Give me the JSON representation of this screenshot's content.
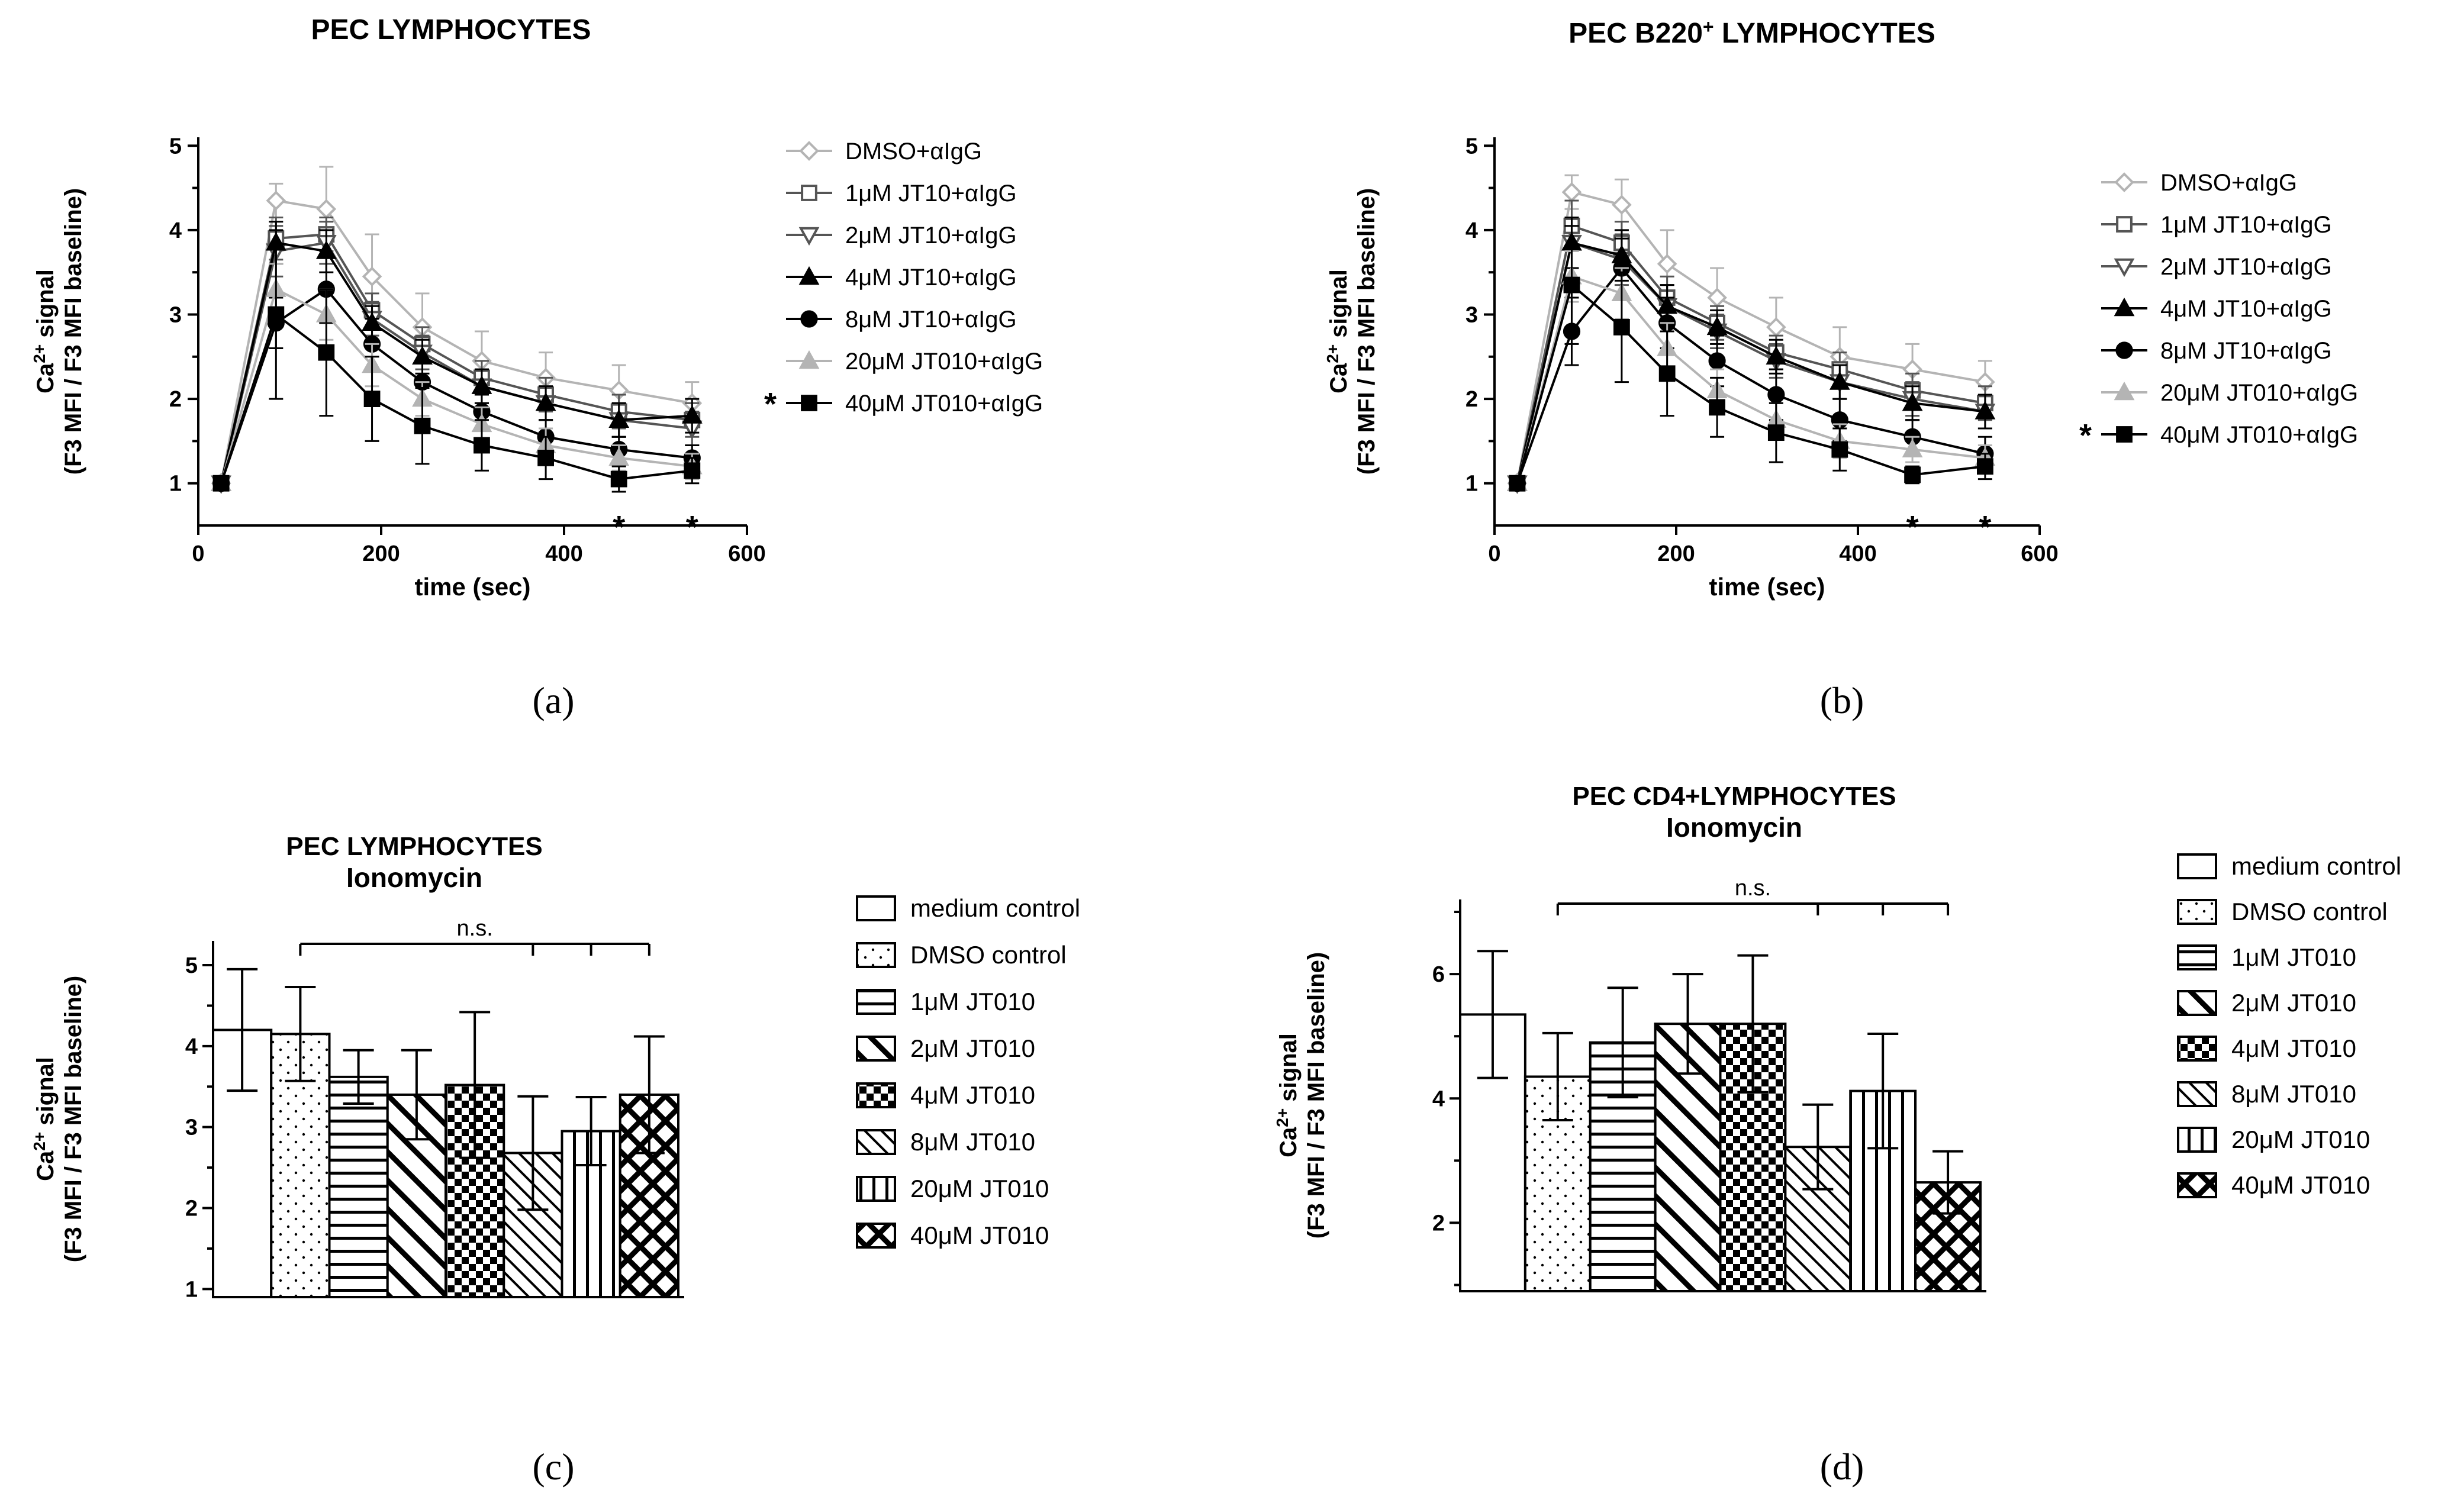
{
  "chart_data": [
    {
      "id": "a",
      "type": "line",
      "panel_label": "(a)",
      "title": "PEC LYMPHOCYTES",
      "xlabel": "time (sec)",
      "ylabel_line1": "Ca2+ signal",
      "ylabel_line2": "(F3 MFI / F3 MFI baseline)",
      "xlim": [
        0,
        600
      ],
      "ylim": [
        0.5,
        5.1
      ],
      "xticks": [
        0,
        200,
        400,
        600
      ],
      "yticks": [
        1,
        2,
        3,
        4,
        5
      ],
      "x": [
        25,
        85,
        140,
        190,
        245,
        310,
        380,
        460,
        540
      ],
      "legend_marked_label": "*",
      "annotations": [
        {
          "x": 460,
          "y": 0.55,
          "text": "*"
        },
        {
          "x": 540,
          "y": 0.55,
          "text": "*"
        }
      ],
      "series": [
        {
          "name": "DMSO+αIgG",
          "marker": "diamond-open",
          "color": "#b4b4b4",
          "values": [
            1,
            4.35,
            4.25,
            3.45,
            2.85,
            2.45,
            2.25,
            2.1,
            1.95
          ],
          "errors": [
            0,
            0.2,
            0.5,
            0.5,
            0.4,
            0.35,
            0.3,
            0.3,
            0.25
          ]
        },
        {
          "name": "1μM JT10+αIgG",
          "marker": "square-open",
          "color": "#555555",
          "values": [
            1,
            3.9,
            3.95,
            3.05,
            2.65,
            2.25,
            2.05,
            1.85,
            1.75
          ],
          "errors": [
            0,
            0.25,
            0.2,
            0.2,
            0.2,
            0.2,
            0.2,
            0.2,
            0.2
          ]
        },
        {
          "name": "2μM JT10+αIgG",
          "marker": "triangle-down-open",
          "color": "#555555",
          "values": [
            1,
            3.75,
            3.85,
            2.95,
            2.55,
            2.15,
            1.95,
            1.75,
            1.65
          ],
          "errors": [
            0,
            0.3,
            0.25,
            0.2,
            0.2,
            0.2,
            0.2,
            0.2,
            0.2
          ]
        },
        {
          "name": "4μM JT10+αIgG",
          "marker": "triangle-up",
          "color": "#000000",
          "values": [
            1,
            3.85,
            3.75,
            2.9,
            2.5,
            2.15,
            1.95,
            1.75,
            1.8
          ],
          "errors": [
            0,
            0.25,
            0.25,
            0.2,
            0.2,
            0.2,
            0.2,
            0.2,
            0.2
          ]
        },
        {
          "name": "8μM JT10+αIgG",
          "marker": "circle",
          "color": "#000000",
          "values": [
            1,
            2.9,
            3.3,
            2.65,
            2.2,
            1.85,
            1.55,
            1.4,
            1.3
          ],
          "errors": [
            0,
            0.3,
            0.4,
            0.3,
            0.25,
            0.2,
            0.2,
            0.15,
            0.15
          ]
        },
        {
          "name": "20μM JT010+αIgG",
          "marker": "triangle-up",
          "color": "#b4b4b4",
          "values": [
            1,
            3.3,
            3.0,
            2.4,
            2.0,
            1.7,
            1.45,
            1.3,
            1.2
          ],
          "errors": [
            0,
            0.3,
            0.3,
            0.25,
            0.2,
            0.2,
            0.2,
            0.15,
            0.15
          ]
        },
        {
          "name": "40μM JT010+αIgG",
          "marker": "square",
          "color": "#000000",
          "values": [
            1,
            3.0,
            2.55,
            2.0,
            1.68,
            1.45,
            1.3,
            1.05,
            1.15
          ],
          "errors": [
            0,
            1.0,
            0.75,
            0.5,
            0.45,
            0.3,
            0.25,
            0.15,
            0.15
          ]
        }
      ]
    },
    {
      "id": "b",
      "type": "line",
      "panel_label": "(b)",
      "title": "PEC B220+ LYMPHOCYTES",
      "xlabel": "time (sec)",
      "ylabel_line1": "Ca2+ signal",
      "ylabel_line2": "(F3 MFI / F3 MFI baseline)",
      "xlim": [
        0,
        600
      ],
      "ylim": [
        0.5,
        5.1
      ],
      "xticks": [
        0,
        200,
        400,
        600
      ],
      "yticks": [
        1,
        2,
        3,
        4,
        5
      ],
      "x": [
        25,
        85,
        140,
        190,
        245,
        310,
        380,
        460,
        540
      ],
      "legend_marked_label": "*",
      "annotations": [
        {
          "x": 460,
          "y": 0.55,
          "text": "*"
        },
        {
          "x": 540,
          "y": 0.55,
          "text": "*"
        }
      ],
      "series": [
        {
          "name": "DMSO+αIgG",
          "marker": "diamond-open",
          "color": "#b4b4b4",
          "values": [
            1,
            4.45,
            4.3,
            3.6,
            3.2,
            2.85,
            2.5,
            2.35,
            2.2
          ],
          "errors": [
            0,
            0.2,
            0.3,
            0.4,
            0.35,
            0.35,
            0.35,
            0.3,
            0.25
          ]
        },
        {
          "name": "1μM JT10+αIgG",
          "marker": "square-open",
          "color": "#555555",
          "values": [
            1,
            4.05,
            3.85,
            3.2,
            2.9,
            2.55,
            2.35,
            2.1,
            1.95
          ],
          "errors": [
            0,
            0.3,
            0.25,
            0.25,
            0.2,
            0.2,
            0.2,
            0.2,
            0.2
          ]
        },
        {
          "name": "2μM JT10+αIgG",
          "marker": "triangle-down-open",
          "color": "#555555",
          "values": [
            1,
            3.85,
            3.65,
            3.1,
            2.8,
            2.45,
            2.2,
            2.0,
            1.85
          ],
          "errors": [
            0,
            0.3,
            0.3,
            0.25,
            0.2,
            0.2,
            0.2,
            0.2,
            0.2
          ]
        },
        {
          "name": "4μM JT10+αIgG",
          "marker": "triangle-up",
          "color": "#000000",
          "values": [
            1,
            3.85,
            3.7,
            3.1,
            2.85,
            2.5,
            2.2,
            1.95,
            1.85
          ],
          "errors": [
            0,
            0.3,
            0.3,
            0.25,
            0.2,
            0.2,
            0.2,
            0.2,
            0.2
          ]
        },
        {
          "name": "8μM JT10+αIgG",
          "marker": "circle",
          "color": "#000000",
          "values": [
            1,
            2.8,
            3.55,
            2.9,
            2.45,
            2.05,
            1.75,
            1.55,
            1.35
          ],
          "errors": [
            0,
            0.4,
            0.35,
            0.3,
            0.3,
            0.3,
            0.25,
            0.2,
            0.2
          ]
        },
        {
          "name": "20μM JT010+αIgG",
          "marker": "triangle-up",
          "color": "#b4b4b4",
          "values": [
            1,
            3.45,
            3.25,
            2.6,
            2.1,
            1.75,
            1.5,
            1.4,
            1.3
          ],
          "errors": [
            0,
            0.3,
            0.3,
            0.3,
            0.25,
            0.2,
            0.2,
            0.15,
            0.15
          ]
        },
        {
          "name": "40μM JT010+αIgG",
          "marker": "square",
          "color": "#000000",
          "values": [
            1,
            3.35,
            2.85,
            2.3,
            1.9,
            1.6,
            1.4,
            1.1,
            1.2
          ],
          "errors": [
            0,
            0.7,
            0.65,
            0.5,
            0.35,
            0.35,
            0.25,
            0.1,
            0.15
          ]
        }
      ]
    },
    {
      "id": "c",
      "type": "bar",
      "panel_label": "(c)",
      "title": "PEC LYMPHOCYTES",
      "subtitle": "Ionomycin",
      "ylabel_line1": "Ca2+ signal",
      "ylabel_line2": "(F3 MFI / F3 MFI baseline)",
      "ylim": [
        0.9,
        5.3
      ],
      "yticks": [
        1,
        2,
        3,
        4,
        5
      ],
      "significance": "n.s.",
      "categories": [
        "medium control",
        "DMSO control",
        "1μM JT010",
        "2μM JT010",
        "4μM JT010",
        "8μM JT010",
        "20μM JT010",
        "40μM JT010"
      ],
      "values": [
        4.2,
        4.15,
        3.62,
        3.4,
        3.52,
        2.68,
        2.95,
        3.4
      ],
      "errors": [
        0.75,
        0.58,
        0.33,
        0.55,
        0.9,
        0.7,
        0.42,
        0.72
      ],
      "patterns": [
        "none",
        "dots",
        "hlines",
        "diag-thick",
        "checker",
        "diag-thin",
        "vlines",
        "crosshatch"
      ]
    },
    {
      "id": "d",
      "type": "bar",
      "panel_label": "(d)",
      "title": "PEC CD4+LYMPHOCYTES",
      "subtitle": "Ionomycin",
      "ylabel_line1": "Ca2+ signal",
      "ylabel_line2": "(F3 MFI / F3 MFI baseline)",
      "ylim": [
        0.9,
        7.2
      ],
      "yticks": [
        2,
        4,
        6
      ],
      "significance": "n.s.",
      "categories": [
        "medium control",
        "DMSO control",
        "1μM JT010",
        "2μM JT010",
        "4μM JT010",
        "8μM JT010",
        "20μM JT010",
        "40μM JT010"
      ],
      "values": [
        5.35,
        4.35,
        4.9,
        5.2,
        5.2,
        3.22,
        4.12,
        2.65
      ],
      "errors": [
        1.02,
        0.7,
        0.88,
        0.8,
        1.1,
        0.68,
        0.92,
        0.5
      ],
      "patterns": [
        "none",
        "dots",
        "hlines",
        "diag-thick",
        "checker",
        "diag-thin",
        "vlines",
        "crosshatch"
      ]
    }
  ]
}
